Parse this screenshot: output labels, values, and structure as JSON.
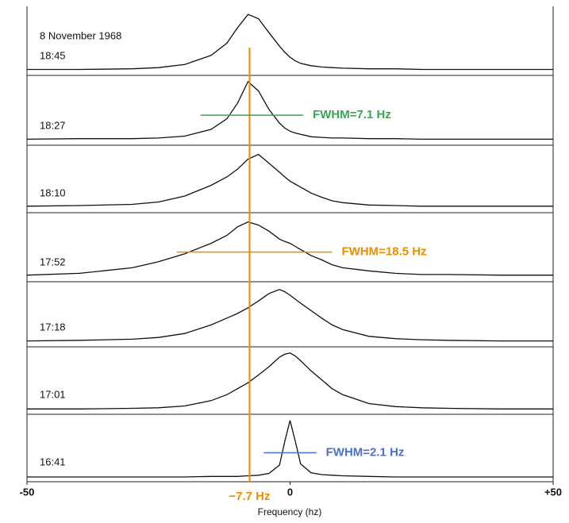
{
  "chart_data": {
    "type": "line",
    "date": "8 November 1968",
    "xlabel": "Frequency (hz)",
    "xlim": [
      -50,
      50
    ],
    "xticks": [
      -50,
      0,
      {
        "value": 50,
        "label": "+50"
      }
    ],
    "ylim": [
      0,
      1
    ],
    "color": "#111111",
    "x": [
      -50,
      -40,
      -30,
      -25,
      -20,
      -15,
      -12,
      -10,
      -8,
      -6,
      -4,
      -2,
      -1,
      0,
      1,
      2,
      4,
      6,
      8,
      10,
      15,
      20,
      25,
      30,
      40,
      50
    ],
    "panels": [
      {
        "name": "18:45",
        "values": [
          0.02,
          0.02,
          0.03,
          0.05,
          0.1,
          0.25,
          0.45,
          0.7,
          0.92,
          0.85,
          0.62,
          0.4,
          0.3,
          0.22,
          0.16,
          0.12,
          0.08,
          0.06,
          0.05,
          0.04,
          0.03,
          0.03,
          0.02,
          0.02,
          0.02,
          0.02
        ]
      },
      {
        "name": "18:27",
        "values": [
          0.02,
          0.03,
          0.03,
          0.04,
          0.07,
          0.18,
          0.35,
          0.6,
          0.95,
          0.8,
          0.5,
          0.28,
          0.2,
          0.15,
          0.12,
          0.1,
          0.06,
          0.05,
          0.04,
          0.04,
          0.03,
          0.03,
          0.02,
          0.02,
          0.02,
          0.02
        ]
      },
      {
        "name": "18:10",
        "values": [
          0.03,
          0.04,
          0.06,
          0.1,
          0.2,
          0.38,
          0.52,
          0.65,
          0.82,
          0.9,
          0.75,
          0.6,
          0.52,
          0.45,
          0.4,
          0.35,
          0.25,
          0.18,
          0.12,
          0.09,
          0.05,
          0.04,
          0.03,
          0.03,
          0.03,
          0.03
        ]
      },
      {
        "name": "17:52",
        "values": [
          0.03,
          0.06,
          0.15,
          0.25,
          0.38,
          0.55,
          0.68,
          0.82,
          0.9,
          0.85,
          0.75,
          0.62,
          0.58,
          0.55,
          0.5,
          0.45,
          0.35,
          0.28,
          0.2,
          0.15,
          0.1,
          0.06,
          0.04,
          0.04,
          0.03,
          0.03
        ]
      },
      {
        "name": "17:18",
        "values": [
          0.02,
          0.03,
          0.05,
          0.08,
          0.15,
          0.3,
          0.42,
          0.5,
          0.6,
          0.72,
          0.85,
          0.92,
          0.88,
          0.82,
          0.75,
          0.68,
          0.55,
          0.42,
          0.3,
          0.22,
          0.1,
          0.06,
          0.04,
          0.03,
          0.02,
          0.02
        ]
      },
      {
        "name": "17:01",
        "values": [
          0.01,
          0.01,
          0.02,
          0.03,
          0.06,
          0.15,
          0.25,
          0.35,
          0.45,
          0.58,
          0.72,
          0.88,
          0.93,
          0.95,
          0.9,
          0.82,
          0.65,
          0.5,
          0.35,
          0.25,
          0.1,
          0.05,
          0.03,
          0.02,
          0.01,
          0.01
        ]
      },
      {
        "name": "16:41",
        "values": [
          0,
          0,
          0,
          0,
          0,
          0.01,
          0.01,
          0.01,
          0.02,
          0.03,
          0.06,
          0.2,
          0.6,
          0.95,
          0.6,
          0.22,
          0.07,
          0.04,
          0.03,
          0.02,
          0.01,
          0,
          0,
          0,
          0,
          0
        ]
      }
    ],
    "marker": {
      "value": -7.7,
      "label": "−7.7 Hz",
      "color": "#f08c00"
    },
    "annotations": [
      {
        "text": "FWHM=7.1 Hz",
        "panel": 1,
        "xrange": [
          -17,
          2.5
        ],
        "color": "#3aa655"
      },
      {
        "text": "FWHM=18.5 Hz",
        "panel": 3,
        "xrange": [
          -21.5,
          8
        ],
        "color": "#f08c00"
      },
      {
        "text": "FWHM=2.1 Hz",
        "panel": 6,
        "xrange": [
          -5,
          5
        ],
        "color": "#4a6fd0"
      }
    ]
  }
}
